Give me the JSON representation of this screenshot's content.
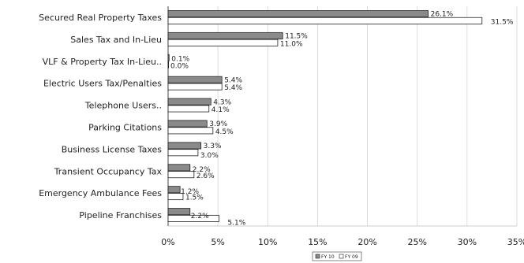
{
  "chart_data": {
    "type": "bar",
    "orientation": "horizontal",
    "categories": [
      "Secured Real Property Taxes",
      "Sales Tax and In-Lieu",
      "VLF & Property Tax In-Lieu..",
      "Electric Users Tax/Penalties",
      "Telephone Users..",
      "Parking Citations",
      "Business License Taxes",
      "Transient Occupancy Tax",
      "Emergency Ambulance Fees",
      "Pipeline Franchises"
    ],
    "series": [
      {
        "name": "FY 10",
        "values": [
          26.1,
          11.5,
          0.1,
          5.4,
          4.3,
          3.9,
          3.3,
          2.2,
          1.2,
          2.2
        ],
        "labels": [
          "26.1%",
          "11.5%",
          "0.1%",
          "5.4%",
          "4.3%",
          "3.9%",
          "3.3%",
          "2.2%",
          "1.2%",
          "2.2%"
        ],
        "color": "#8a8a8a"
      },
      {
        "name": "FY 09",
        "values": [
          31.5,
          11.0,
          0.0,
          5.4,
          4.1,
          4.5,
          3.0,
          2.6,
          1.5,
          5.1
        ],
        "labels": [
          "31.5%",
          "11.0%",
          "0.0%",
          "5.4%",
          "4.1%",
          "4.5%",
          "3.0%",
          "2.6%",
          "1.5%",
          "5.1%"
        ],
        "color": "#ffffff"
      }
    ],
    "x_ticks": [
      "0%",
      "5%",
      "10%",
      "15%",
      "20%",
      "25%",
      "30%",
      "35%"
    ],
    "xlim": [
      0,
      35
    ],
    "grid": true,
    "legend": {
      "placement": "bottom-center",
      "entries": [
        "FY 10",
        "FY 09"
      ]
    },
    "title": "",
    "xlabel": "",
    "ylabel": ""
  }
}
